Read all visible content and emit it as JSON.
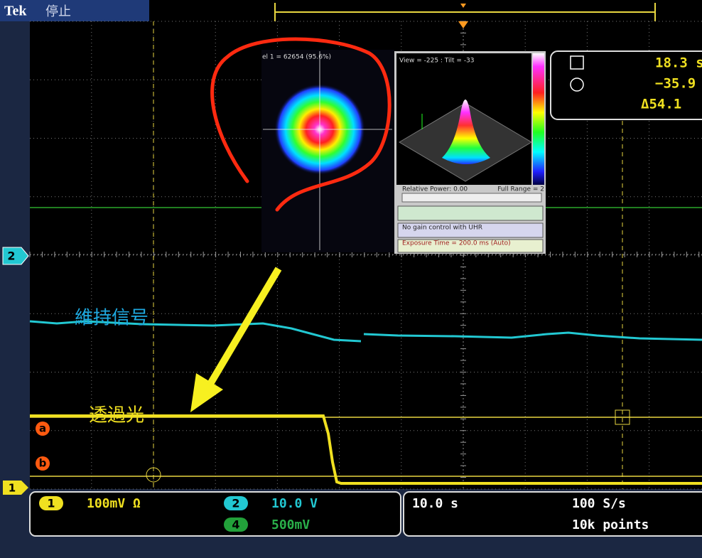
{
  "status_bar": {
    "brand": "Tek",
    "state": "停止"
  },
  "beam_view": {
    "profile_label": "el 1 = 62654 (95.6%)",
    "view_label": "View = -225 : Tilt = -33",
    "relative_power": "Relative Power: 0.00",
    "full_range": "Full Range = 2",
    "gain_control": "No gain control with UHR",
    "exposure": "Exposure Time = 200.0 ms (Auto)"
  },
  "cursor_readout": {
    "time": "18.3 s",
    "value": "−35.9",
    "delta": "Δ54.1"
  },
  "markers": {
    "channel2": "2",
    "channel1": "1",
    "cursor_a": "a",
    "cursor_b": "b"
  },
  "annotations": {
    "hold_signal": "維持信号",
    "transmitted_light": "透過光"
  },
  "channels": [
    {
      "number": "1",
      "scale": "100mV Ω"
    },
    {
      "number": "2",
      "scale": "10.0 V"
    },
    {
      "number": "4",
      "scale": "500mV"
    }
  ],
  "acquisition": {
    "timebase": "10.0 s",
    "sample_rate": "100 S/s",
    "record_length": "10k points"
  }
}
